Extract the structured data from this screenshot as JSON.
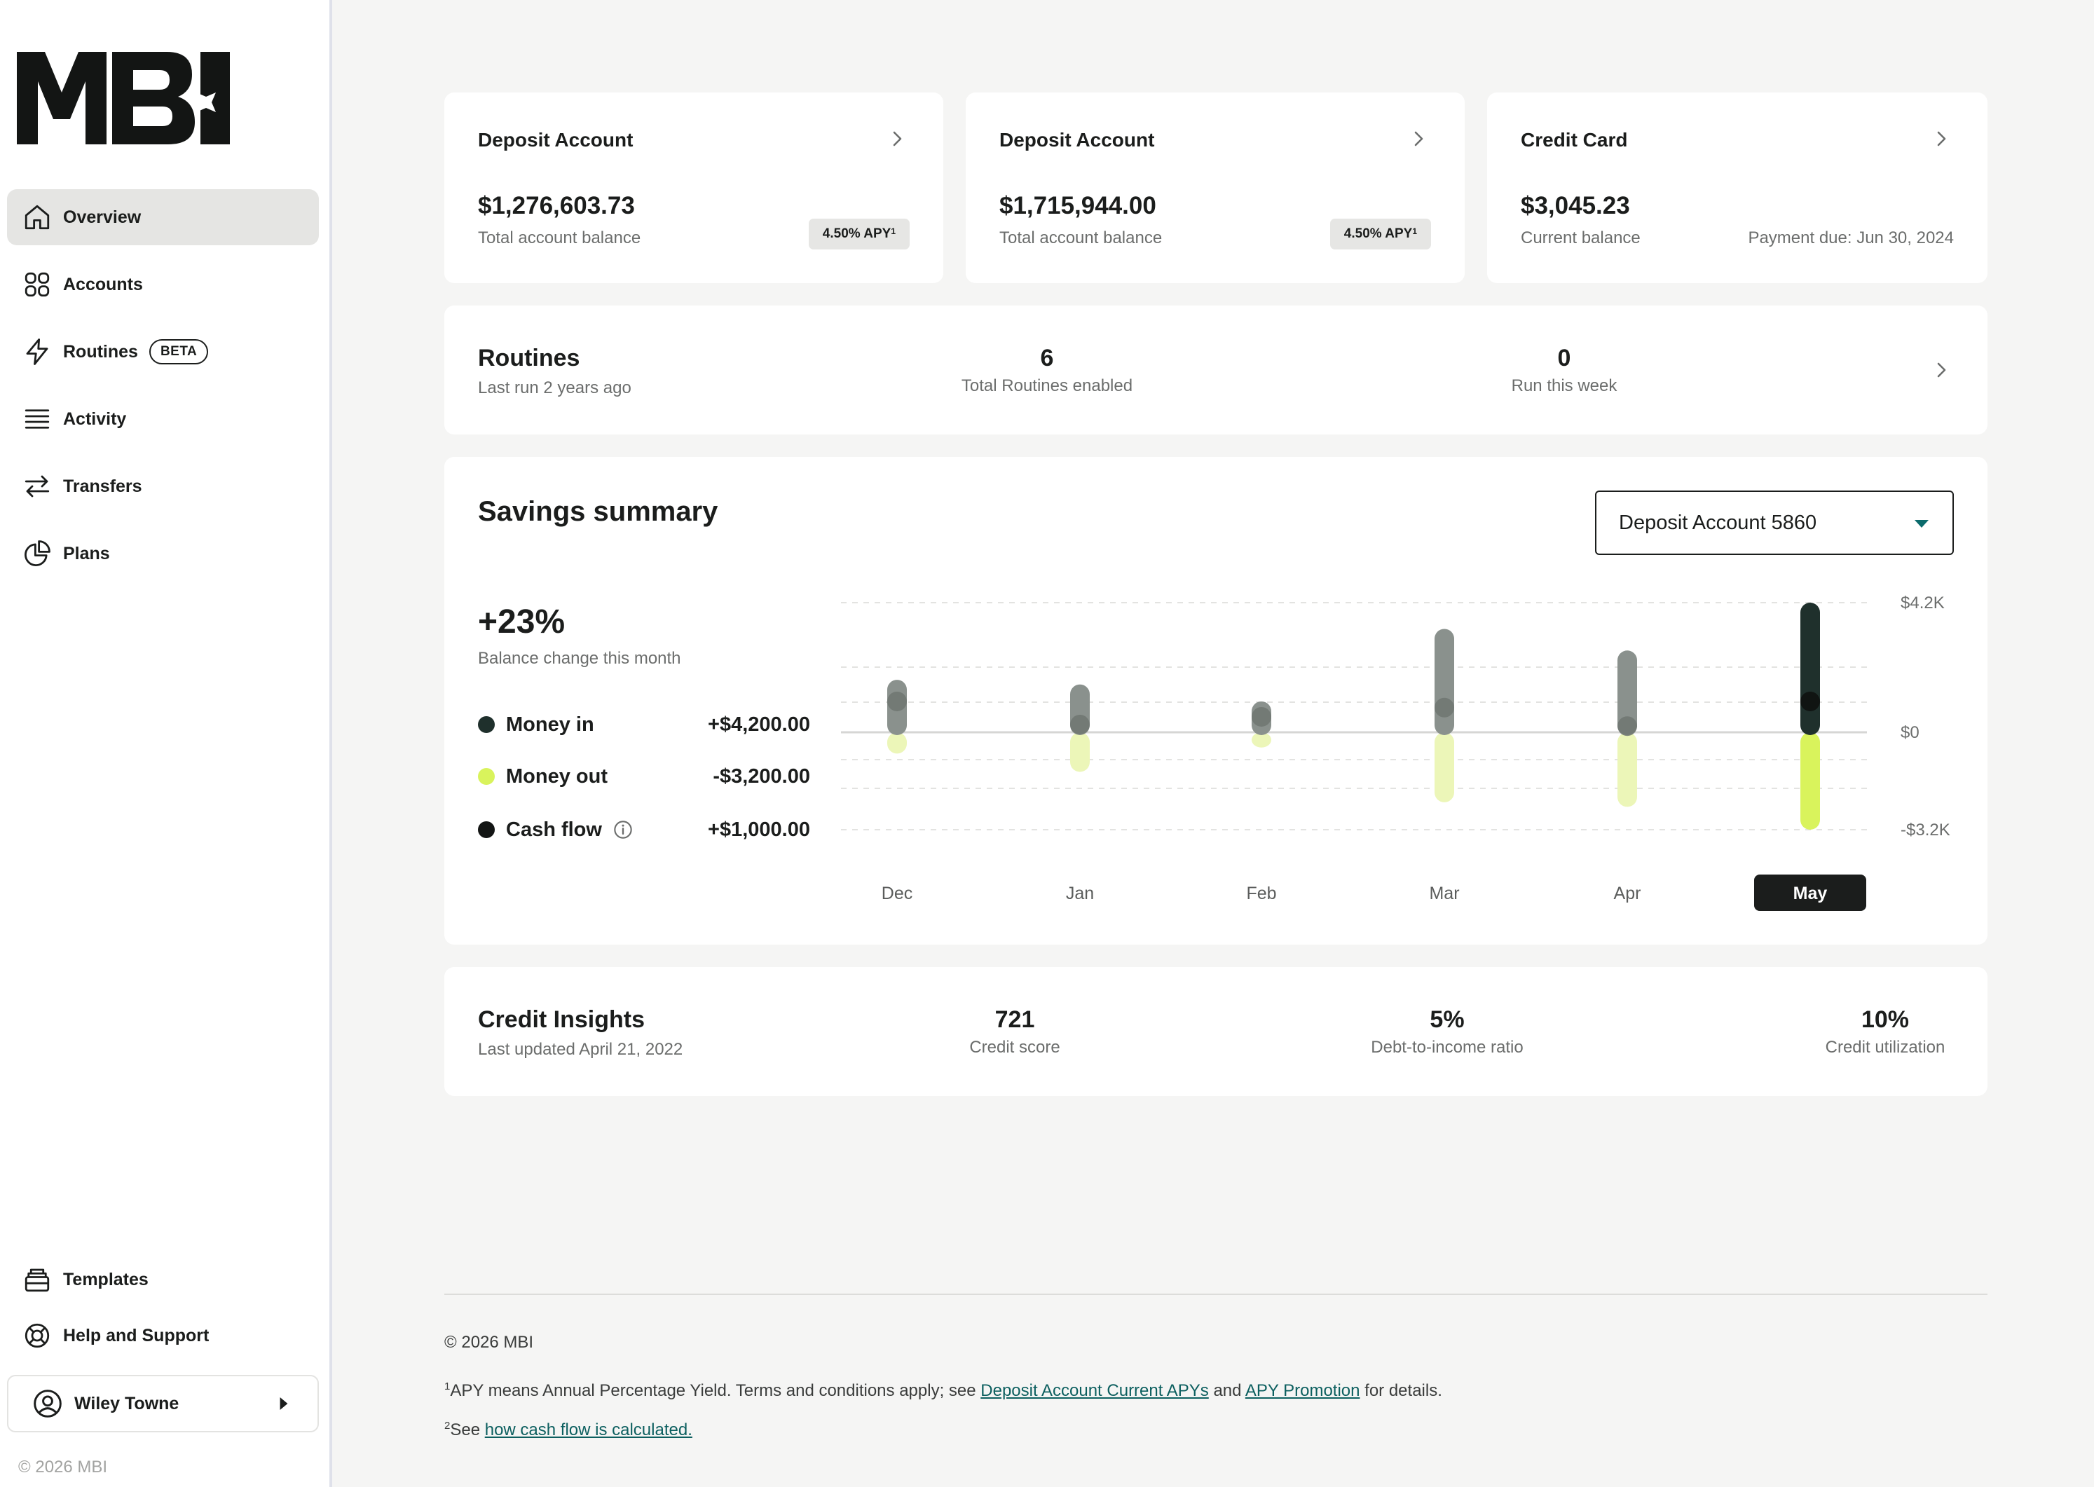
{
  "sidebar": {
    "nav": [
      {
        "label": "Overview",
        "icon": "home-icon"
      },
      {
        "label": "Accounts",
        "icon": "grid-icon"
      },
      {
        "label": "Routines",
        "icon": "lightning-icon",
        "badge": "BETA"
      },
      {
        "label": "Activity",
        "icon": "list-icon"
      },
      {
        "label": "Transfers",
        "icon": "arrows-icon"
      },
      {
        "label": "Plans",
        "icon": "pie-icon"
      }
    ],
    "bottom": [
      {
        "label": "Templates",
        "icon": "templates-icon"
      },
      {
        "label": "Help and Support",
        "icon": "lifebuoy-icon"
      }
    ],
    "user_name": "Wiley Towne",
    "copyright": "© 2026 MBI"
  },
  "accounts": [
    {
      "title": "Deposit Account",
      "amount": "$1,276,603.73",
      "sub": "Total account balance",
      "apy": "4.50% APY",
      "apy_sup": "1"
    },
    {
      "title": "Deposit Account",
      "amount": "$1,715,944.00",
      "sub": "Total account balance",
      "apy": "4.50% APY",
      "apy_sup": "1"
    },
    {
      "title": "Credit Card",
      "amount": "$3,045.23",
      "sub": "Current balance",
      "due": "Payment due: Jun 30, 2024"
    }
  ],
  "routines": {
    "title": "Routines",
    "sub": "Last run 2 years ago",
    "total": "6",
    "total_label": "Total Routines enabled",
    "week": "0",
    "week_label": "Run this week"
  },
  "savings": {
    "title": "Savings summary",
    "account_select": "Deposit Account 5860",
    "change": "+23%",
    "change_label": "Balance change this month",
    "legend": [
      {
        "name": "Money in",
        "value": "+$4,200.00",
        "color": "#1f302c"
      },
      {
        "name": "Money out",
        "value": "-$3,200.00",
        "color": "#d9f35c"
      },
      {
        "name": "Cash flow",
        "value": "+$1,000.00",
        "color": "#131514"
      }
    ]
  },
  "chart_data": {
    "type": "bar",
    "categories": [
      "Dec",
      "Jan",
      "Feb",
      "Mar",
      "Apr",
      "May"
    ],
    "selected": "May",
    "y_tick_labels": [
      "$4.2K",
      "$0",
      "-$3.2K"
    ],
    "ylim": [
      -3200,
      4200
    ],
    "series": [
      {
        "name": "Money in",
        "values": [
          1700,
          1550,
          1000,
          3350,
          2650,
          4200
        ]
      },
      {
        "name": "Money out",
        "values": [
          -700,
          -1300,
          -500,
          -2300,
          -2450,
          -3200
        ]
      },
      {
        "name": "Cash flow",
        "values": [
          1000,
          250,
          500,
          800,
          200,
          1000
        ]
      }
    ]
  },
  "credit": {
    "title": "Credit Insights",
    "sub": "Last updated April 21, 2022",
    "score": "721",
    "score_label": "Credit score",
    "dti": "5%",
    "dti_label": "Debt-to-income ratio",
    "util": "10%",
    "util_label": "Credit utilization"
  },
  "footer": {
    "copyright": "© 2026 MBI",
    "note1_sup": "1",
    "note1_pre": "APY means Annual Percentage Yield. Terms and conditions apply; see ",
    "note1_link1": "Deposit Account Current APYs",
    "note1_mid": " and ",
    "note1_link2": "APY Promotion",
    "note1_post": " for details.",
    "note2_sup": "2",
    "note2_pre": "See ",
    "note2_link": "how cash flow is calculated."
  }
}
